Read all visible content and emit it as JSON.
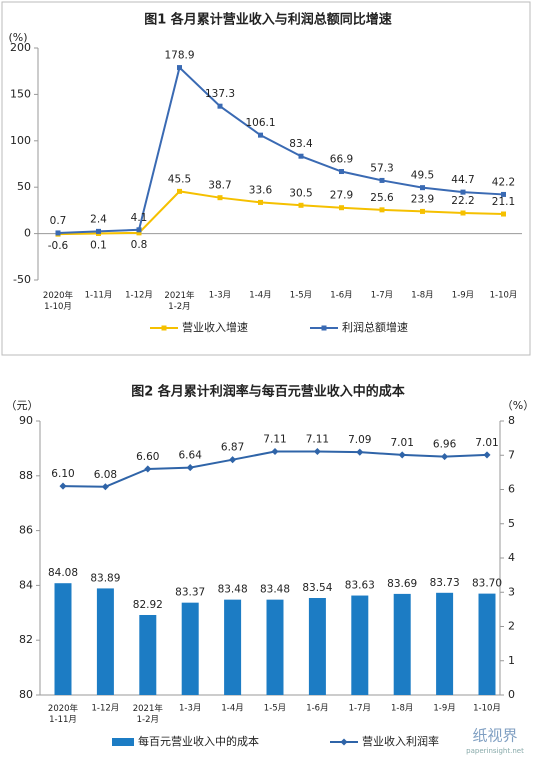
{
  "chart_data": [
    {
      "type": "line",
      "title": "图1 各月累计营业收入与利润总额同比增速",
      "y_unit": "(%)",
      "categories": [
        "2020年\n1-10月",
        "1-11月",
        "1-12月",
        "2021年\n1-2月",
        "1-3月",
        "1-4月",
        "1-5月",
        "1-6月",
        "1-7月",
        "1-8月",
        "1-9月",
        "1-10月"
      ],
      "series": [
        {
          "name": "营业收入增速",
          "color": "#f5c000",
          "values": [
            -0.6,
            0.1,
            0.8,
            45.5,
            38.7,
            33.6,
            30.5,
            27.9,
            25.6,
            23.9,
            22.2,
            21.1
          ]
        },
        {
          "name": "利润总额增速",
          "color": "#3a6ab3",
          "values": [
            0.7,
            2.4,
            4.1,
            178.9,
            137.3,
            106.1,
            83.4,
            66.9,
            57.3,
            49.5,
            44.7,
            42.2
          ]
        }
      ],
      "ylim": [
        -50,
        200
      ],
      "yticks": [
        -50,
        0,
        50,
        100,
        150,
        200
      ],
      "grid": false,
      "legend": "bottom"
    },
    {
      "type": "bar",
      "title": "图2 各月累计利润率与每百元营业收入中的成本",
      "y_unit": "（元）",
      "y2_unit": "（%）",
      "categories": [
        "2020年\n1-11月",
        "1-12月",
        "2021年\n1-2月",
        "1-3月",
        "1-4月",
        "1-5月",
        "1-6月",
        "1-7月",
        "1-8月",
        "1-9月",
        "1-10月"
      ],
      "series": [
        {
          "name": "每百元营业收入中的成本",
          "type": "bar",
          "color": "#1c7cc4",
          "values": [
            84.08,
            83.89,
            82.92,
            83.37,
            83.48,
            83.48,
            83.54,
            83.63,
            83.69,
            83.73,
            83.7
          ],
          "value_labels": [
            "84.08",
            "83.89",
            "82.92",
            "83.37",
            "83.48",
            "83.48",
            "83.54",
            "83.63",
            "83.69",
            "83.73",
            "83.70"
          ]
        },
        {
          "name": "营业收入利润率",
          "type": "line",
          "axis": "y2",
          "color": "#2f64a8",
          "values": [
            6.1,
            6.08,
            6.6,
            6.64,
            6.87,
            7.11,
            7.11,
            7.09,
            7.01,
            6.96,
            7.01
          ],
          "value_labels": [
            "6.10",
            "6.08",
            "6.60",
            "6.64",
            "6.87",
            "7.11",
            "7.11",
            "7.09",
            "7.01",
            "6.96",
            "7.01"
          ]
        }
      ],
      "ylim": [
        80,
        90
      ],
      "yticks": [
        80,
        82,
        84,
        86,
        88,
        90
      ],
      "y2lim": [
        0,
        8
      ],
      "y2ticks": [
        0,
        1,
        2,
        3,
        4,
        5,
        6,
        7,
        8
      ],
      "grid": false,
      "legend": "bottom"
    }
  ],
  "watermark": {
    "name": "纸视界",
    "site": "paperinsight.net"
  }
}
